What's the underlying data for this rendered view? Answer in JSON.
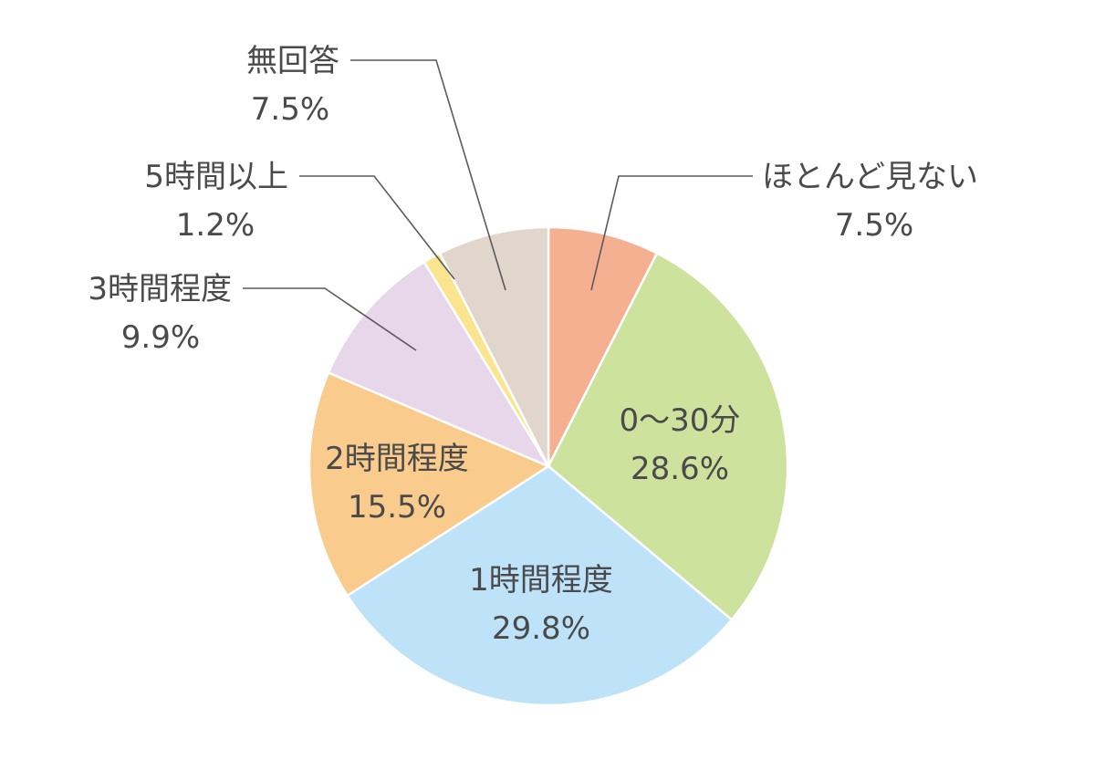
{
  "chart_data": {
    "type": "pie",
    "start_angle_deg": 0,
    "direction": "clockwise",
    "slices": [
      {
        "label": "ほとんど見ない",
        "value": 7.5,
        "value_label": "7.5%",
        "color": "#f4b090",
        "label_placement": "outside"
      },
      {
        "label": "0〜30分",
        "value": 28.6,
        "value_label": "28.6%",
        "color": "#cde29d",
        "label_placement": "inside"
      },
      {
        "label": "1時間程度",
        "value": 29.8,
        "value_label": "29.8%",
        "color": "#bee3f8",
        "label_placement": "inside"
      },
      {
        "label": "2時間程度",
        "value": 15.5,
        "value_label": "15.5%",
        "color": "#f9cb8c",
        "label_placement": "inside"
      },
      {
        "label": "3時間程度",
        "value": 9.9,
        "value_label": "9.9%",
        "color": "#e8d6ea",
        "label_placement": "outside"
      },
      {
        "label": "5時間以上",
        "value": 1.2,
        "value_label": "1.2%",
        "color": "#fae48d",
        "label_placement": "outside"
      },
      {
        "label": "無回答",
        "value": 7.5,
        "value_label": "7.5%",
        "color": "#e0d6cb",
        "label_placement": "outside"
      }
    ]
  }
}
